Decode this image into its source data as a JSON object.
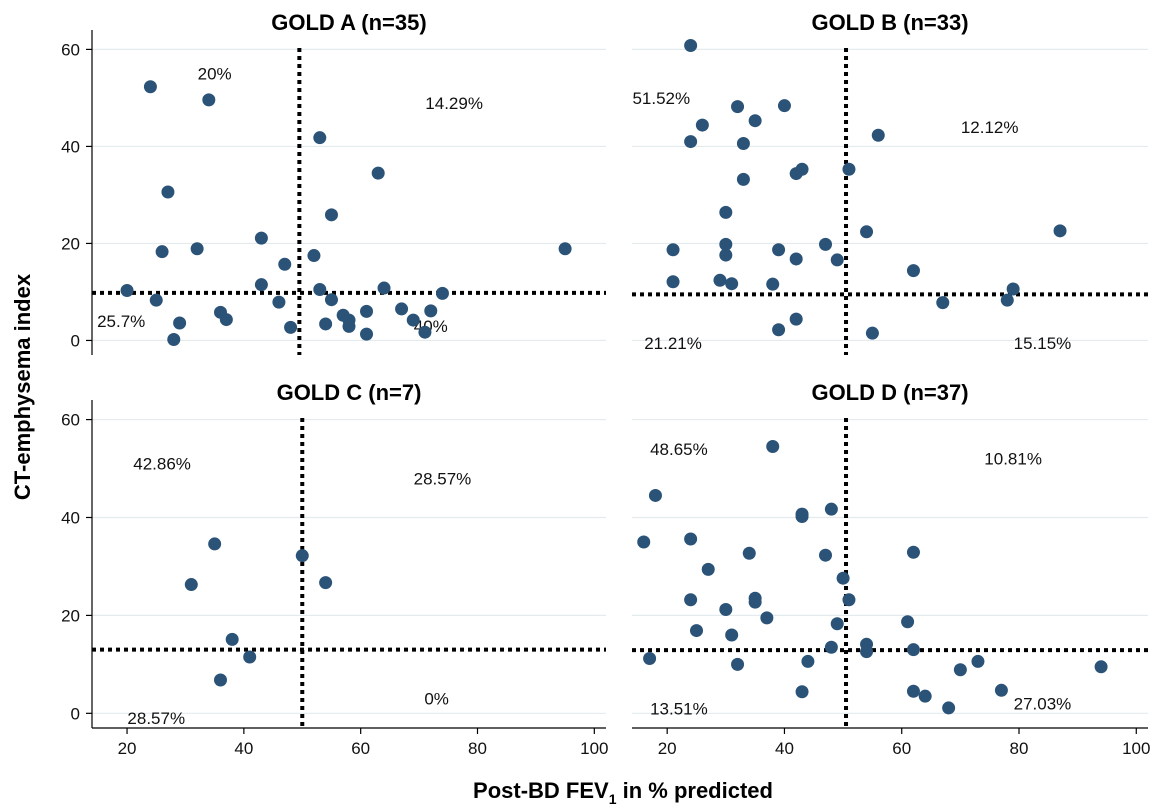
{
  "chart_data": {
    "type": "scatter",
    "ylabel": "CT-emphysema index",
    "xlabel_main": "Post-BD FEV",
    "xlabel_sub": "1",
    "xlabel_rest": " in % predicted",
    "xlim": [
      14,
      102
    ],
    "ylim": [
      -3,
      64
    ],
    "xticks": [
      20,
      40,
      60,
      80,
      100
    ],
    "yticks": [
      0,
      20,
      40,
      60
    ],
    "grid": true,
    "point_color": "#2b5378",
    "panels": [
      {
        "title": "GOLD A (n=35)",
        "vline": 49.5,
        "hline": 9.8,
        "annotations": [
          {
            "text": "20%",
            "x": 35,
            "y": 55
          },
          {
            "text": "14.29%",
            "x": 76,
            "y": 49
          },
          {
            "text": "25.7%",
            "x": 19,
            "y": 4
          },
          {
            "text": "40%",
            "x": 72,
            "y": 3
          }
        ],
        "points": [
          [
            20,
            10.3
          ],
          [
            24,
            52.3
          ],
          [
            25,
            8.3
          ],
          [
            26,
            18.3
          ],
          [
            27,
            30.6
          ],
          [
            28,
            0.2
          ],
          [
            29,
            3.6
          ],
          [
            32,
            18.9
          ],
          [
            34,
            49.6
          ],
          [
            36,
            5.8
          ],
          [
            37,
            4.3
          ],
          [
            43,
            21.1
          ],
          [
            43,
            11.5
          ],
          [
            46,
            7.9
          ],
          [
            47,
            15.7
          ],
          [
            48,
            2.7
          ],
          [
            52,
            17.5
          ],
          [
            53,
            10.5
          ],
          [
            53,
            41.8
          ],
          [
            54,
            3.4
          ],
          [
            55,
            8.4
          ],
          [
            55,
            25.9
          ],
          [
            57,
            5.2
          ],
          [
            58,
            2.9
          ],
          [
            58,
            4.2
          ],
          [
            61,
            1.3
          ],
          [
            61,
            6.0
          ],
          [
            63,
            34.5
          ],
          [
            64,
            10.8
          ],
          [
            67,
            6.5
          ],
          [
            69,
            4.2
          ],
          [
            71,
            1.7
          ],
          [
            72,
            6.1
          ],
          [
            74,
            9.7
          ],
          [
            95,
            18.9
          ]
        ]
      },
      {
        "title": "GOLD B (n=33)",
        "vline": 50.5,
        "hline": 9.5,
        "annotations": [
          {
            "text": "51.52%",
            "x": 19,
            "y": 50
          },
          {
            "text": "12.12%",
            "x": 75,
            "y": 44
          },
          {
            "text": "21.21%",
            "x": 21,
            "y": -0.5
          },
          {
            "text": "15.15%",
            "x": 84,
            "y": -0.5
          }
        ],
        "points": [
          [
            21,
            18.7
          ],
          [
            21,
            12.1
          ],
          [
            24,
            60.8
          ],
          [
            24,
            41.0
          ],
          [
            26,
            44.4
          ],
          [
            29,
            12.4
          ],
          [
            30,
            26.4
          ],
          [
            30,
            19.8
          ],
          [
            30,
            17.6
          ],
          [
            31,
            11.7
          ],
          [
            32,
            48.2
          ],
          [
            33,
            33.2
          ],
          [
            33,
            40.6
          ],
          [
            35,
            45.3
          ],
          [
            38,
            11.6
          ],
          [
            39,
            2.2
          ],
          [
            39,
            18.7
          ],
          [
            40,
            48.4
          ],
          [
            42,
            34.4
          ],
          [
            42,
            16.8
          ],
          [
            42,
            4.4
          ],
          [
            43,
            35.3
          ],
          [
            47,
            19.8
          ],
          [
            49,
            16.6
          ],
          [
            51,
            35.3
          ],
          [
            54,
            22.4
          ],
          [
            55,
            1.5
          ],
          [
            56,
            42.3
          ],
          [
            62,
            14.4
          ],
          [
            67,
            7.8
          ],
          [
            78,
            8.3
          ],
          [
            79,
            10.6
          ],
          [
            87,
            22.6
          ]
        ]
      },
      {
        "title": "GOLD C (n=7)",
        "vline": 50,
        "hline": 13,
        "annotations": [
          {
            "text": "42.86%",
            "x": 26,
            "y": 51
          },
          {
            "text": "28.57%",
            "x": 74,
            "y": 48
          },
          {
            "text": "28.57%",
            "x": 25,
            "y": -1
          },
          {
            "text": "0%",
            "x": 73,
            "y": 3
          }
        ],
        "points": [
          [
            31,
            26.3
          ],
          [
            35,
            34.6
          ],
          [
            36,
            6.8
          ],
          [
            38,
            15.1
          ],
          [
            41,
            11.5
          ],
          [
            50,
            32.2
          ],
          [
            54,
            26.7
          ]
        ]
      },
      {
        "title": "GOLD D (n=37)",
        "vline": 50.5,
        "hline": 12.9,
        "annotations": [
          {
            "text": "48.65%",
            "x": 22,
            "y": 54
          },
          {
            "text": "10.81%",
            "x": 79,
            "y": 52
          },
          {
            "text": "13.51%",
            "x": 22,
            "y": 1
          },
          {
            "text": "27.03%",
            "x": 84,
            "y": 2
          }
        ],
        "points": [
          [
            16,
            35.0
          ],
          [
            17,
            11.2
          ],
          [
            18,
            44.5
          ],
          [
            24,
            35.6
          ],
          [
            24,
            23.2
          ],
          [
            25,
            16.9
          ],
          [
            27,
            29.4
          ],
          [
            30,
            21.2
          ],
          [
            31,
            16.0
          ],
          [
            32,
            10.0
          ],
          [
            34,
            32.7
          ],
          [
            35,
            23.5
          ],
          [
            35,
            22.7
          ],
          [
            37,
            19.5
          ],
          [
            38,
            54.5
          ],
          [
            43,
            40.7
          ],
          [
            43,
            40.2
          ],
          [
            43,
            4.4
          ],
          [
            44,
            10.6
          ],
          [
            47,
            32.3
          ],
          [
            48,
            41.7
          ],
          [
            48,
            13.5
          ],
          [
            49,
            18.3
          ],
          [
            50,
            27.6
          ],
          [
            51,
            23.2
          ],
          [
            54,
            14.1
          ],
          [
            54,
            12.6
          ],
          [
            61,
            18.7
          ],
          [
            62,
            32.9
          ],
          [
            62,
            13.0
          ],
          [
            62,
            4.5
          ],
          [
            64,
            3.5
          ],
          [
            68,
            1.1
          ],
          [
            70,
            8.9
          ],
          [
            73,
            10.6
          ],
          [
            77,
            4.7
          ],
          [
            94,
            9.5
          ]
        ]
      }
    ]
  }
}
